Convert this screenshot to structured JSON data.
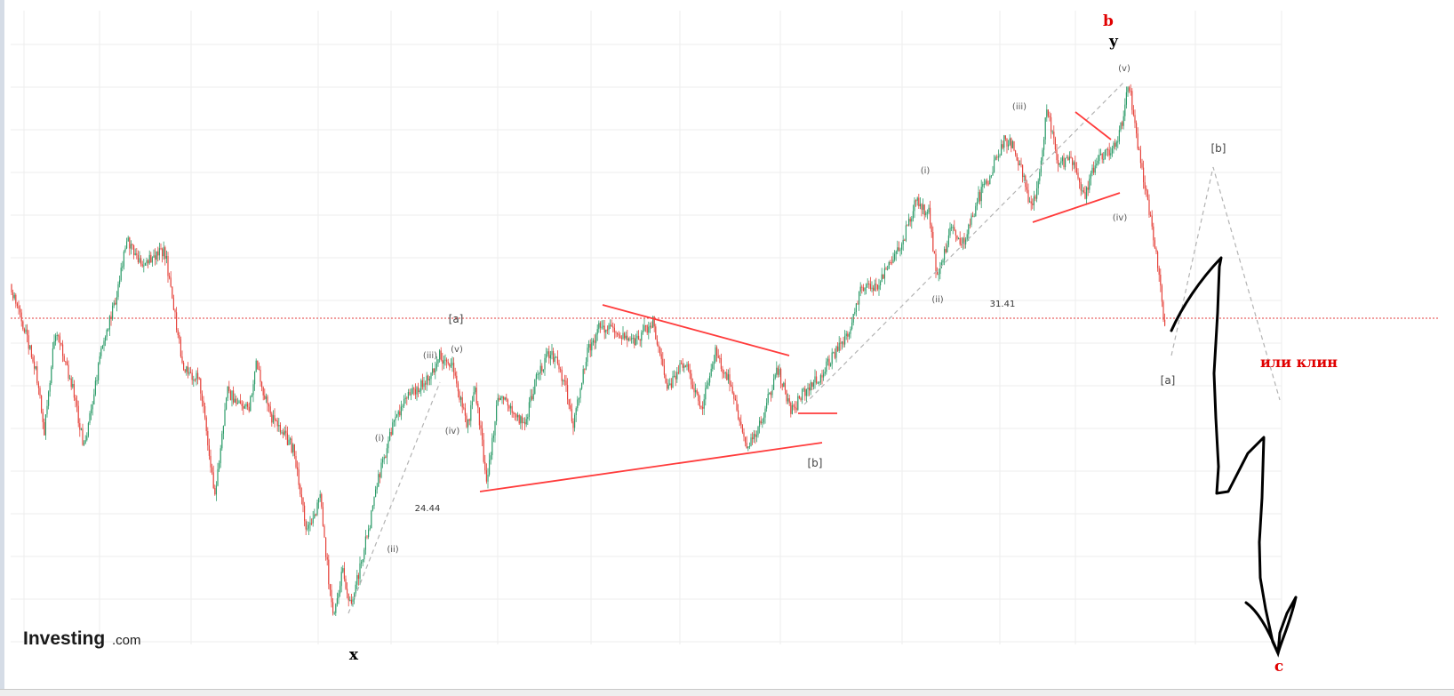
{
  "colors": {
    "up": "#2e9c6a",
    "down": "#e5433b",
    "trendline": "#ff3b3b",
    "reference_line": "#e33b3b",
    "projection": "#b3b3b3",
    "drawing": "#000000",
    "accent_red": "#e00000",
    "grid": "#eeeeee"
  },
  "logo": {
    "main": "Investing",
    "suffix": ".com"
  },
  "chart_data": {
    "type": "candlestick",
    "source": "Investing.com",
    "reference_line": "horizontal dotted red line near the [a] level",
    "grid": true,
    "price_labels": [
      "24.44",
      "31.41"
    ],
    "wave_labels": {
      "first_rise": [
        "(i)",
        "(ii)",
        "(iii)",
        "(iv)",
        "(v)"
      ],
      "second_rise": [
        "(i)",
        "(ii)",
        "(iii)",
        "(iv)",
        "(v)"
      ],
      "corrective": [
        "[a]",
        "[b]",
        "[a]",
        "[b]"
      ]
    },
    "major_waves": {
      "x": "x",
      "y": "y",
      "b": "b",
      "c": "c"
    },
    "annotation": "или клин"
  }
}
